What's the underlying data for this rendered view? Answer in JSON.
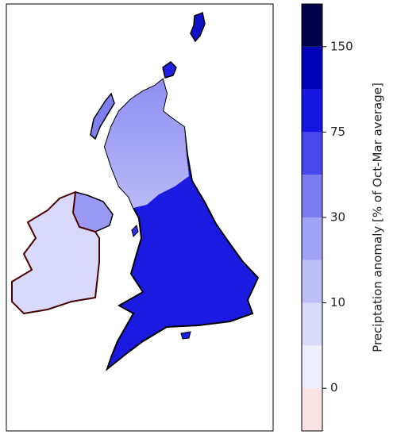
{
  "colorbar": {
    "label": "Preciptation anomaly [% of Oct-Mar average]",
    "colors": [
      "#fde4e4",
      "#eeeefd",
      "#dadafb",
      "#c0c0f8",
      "#a3a3f5",
      "#7b7bf0",
      "#4848ea",
      "#1616e3",
      "#0000b8",
      "#00004a"
    ],
    "ticks": [
      0,
      10,
      30,
      75,
      150
    ]
  }
}
